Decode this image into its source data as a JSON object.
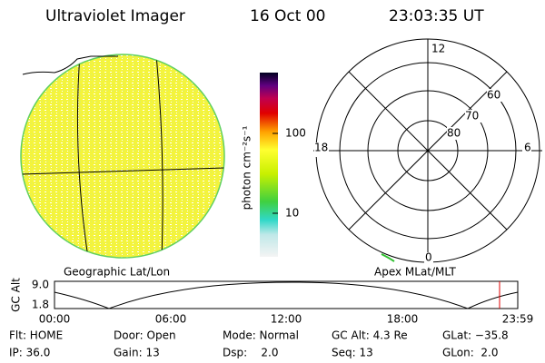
{
  "header": {
    "title": "Ultraviolet Imager",
    "date": "16 Oct 00",
    "time": "23:03:35 UT"
  },
  "colorbar": {
    "label": "photon cm⁻²s⁻¹",
    "ticks": [
      "100",
      "10"
    ]
  },
  "geo_panel": {
    "label": "Geographic Lat/Lon"
  },
  "polar_panel": {
    "label": "Apex MLat/MLT",
    "mlt_labels": [
      "12",
      "18",
      "6",
      "0"
    ],
    "lat_labels": [
      "60",
      "70",
      "80"
    ]
  },
  "altitude_plot": {
    "ylabel": "GC Alt",
    "yticks": [
      "9.0",
      "1.8"
    ],
    "xticks": [
      "00:00",
      "06:00",
      "12:00",
      "18:00",
      "23:59"
    ]
  },
  "info": {
    "rows": [
      [
        "Flt: HOME",
        "Door: Open",
        "Mode: Normal",
        "GC Alt: 4.3 Re",
        "GLat: −35.8"
      ],
      [
        "IP: 36.0",
        "Gain: 13",
        "Dsp:    2.0",
        "Seq: 13",
        "GLon:  2.0"
      ]
    ]
  }
}
